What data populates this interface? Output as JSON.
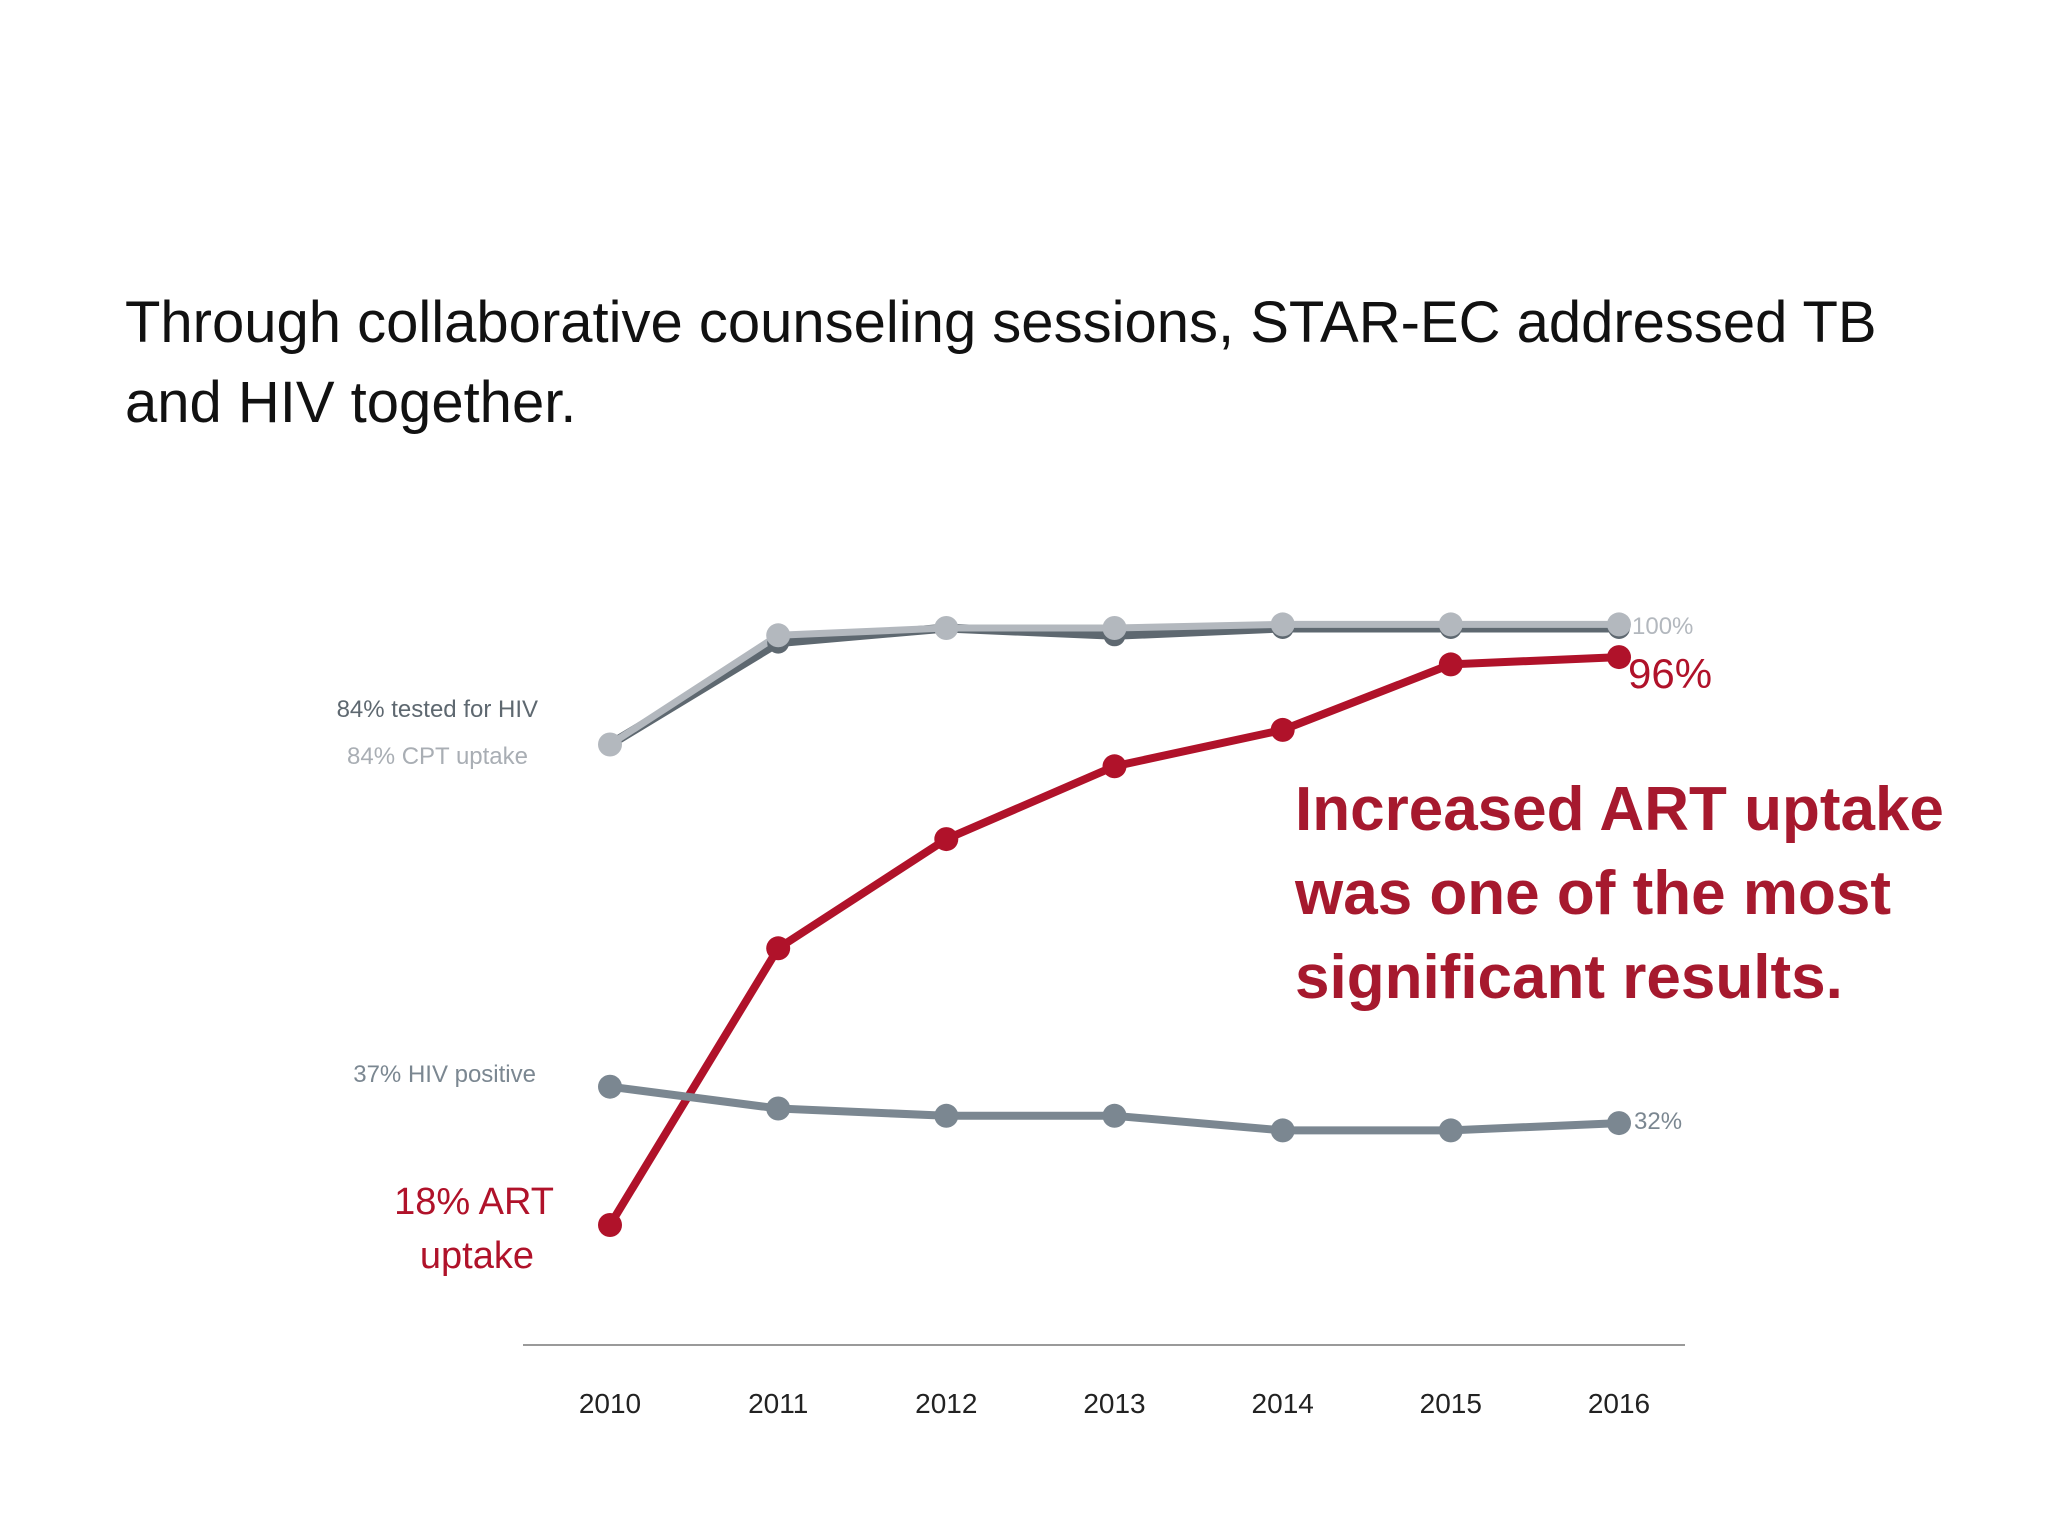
{
  "headline": "Through collaborative counseling sessions, STAR-EC addressed TB and HIV together.",
  "callout": "Increased ART uptake was one of the most significant results.",
  "colors": {
    "tested": "#5e6870",
    "cpt": "#b3b8be",
    "hiv_positive": "#7b8791",
    "art": "#b0122a",
    "axis": "#9a9a9a"
  },
  "chart_data": {
    "type": "line",
    "x": [
      "2010",
      "2011",
      "2012",
      "2013",
      "2014",
      "2015",
      "2016"
    ],
    "ylim": [
      0,
      110
    ],
    "grid": false,
    "series": [
      {
        "key": "tested",
        "values": [
          84,
          98,
          100,
          99,
          100,
          100,
          100
        ]
      },
      {
        "key": "cpt",
        "values": [
          84,
          99,
          100,
          100,
          100.5,
          100.5,
          100.5
        ]
      },
      {
        "key": "art",
        "values": [
          18,
          56,
          71,
          81,
          86,
          95,
          96
        ]
      },
      {
        "key": "hiv_positive",
        "values": [
          37,
          34,
          33,
          33,
          31,
          31,
          32
        ]
      }
    ],
    "labels": {
      "tested_start": "84% tested for HIV",
      "cpt_start": "84% CPT uptake",
      "hiv_start": "37% HIV positive",
      "art_start_line1": "18% ART",
      "art_start_line2": "uptake",
      "top_end": "100%",
      "art_end": "96%",
      "hiv_end": "32%"
    }
  }
}
